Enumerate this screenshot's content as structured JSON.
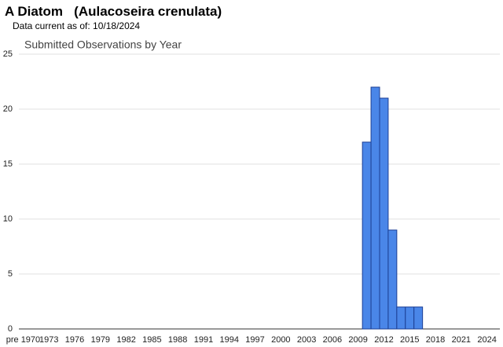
{
  "header": {
    "title": "A Diatom   (Aulacoseira crenulata)",
    "subtitle": "Data current as of: 10/18/2024"
  },
  "chart_data": {
    "type": "bar",
    "title": "Submitted Observations by Year",
    "categories": [
      "pre 1970",
      null,
      null,
      "1973",
      null,
      null,
      "1976",
      null,
      null,
      "1979",
      null,
      null,
      "1982",
      null,
      null,
      "1985",
      null,
      null,
      "1988",
      null,
      null,
      "1991",
      null,
      null,
      "1994",
      null,
      null,
      "1997",
      null,
      null,
      "2000",
      null,
      null,
      "2003",
      null,
      null,
      "2006",
      null,
      null,
      "2009",
      null,
      null,
      "2012",
      null,
      null,
      "2015",
      null,
      null,
      "2018",
      null,
      null,
      "2021",
      null,
      null,
      "2024"
    ],
    "values": [
      0,
      0,
      0,
      0,
      0,
      0,
      0,
      0,
      0,
      0,
      0,
      0,
      0,
      0,
      0,
      0,
      0,
      0,
      0,
      0,
      0,
      0,
      0,
      0,
      0,
      0,
      0,
      0,
      0,
      0,
      0,
      0,
      0,
      0,
      0,
      0,
      0,
      0,
      0,
      0,
      17,
      22,
      21,
      9,
      2,
      2,
      2,
      0,
      0,
      0,
      0,
      0,
      0,
      0,
      0
    ],
    "color": "#4a86e8",
    "border_color": "#1c3f94",
    "ylim": [
      0,
      25
    ],
    "yticks": [
      0,
      5,
      10,
      15,
      20,
      25
    ],
    "grid": true
  }
}
